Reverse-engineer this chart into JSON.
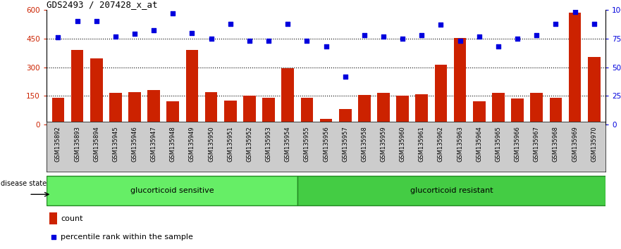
{
  "title": "GDS2493 / 207428_x_at",
  "samples": [
    "GSM135892",
    "GSM135893",
    "GSM135894",
    "GSM135945",
    "GSM135946",
    "GSM135947",
    "GSM135948",
    "GSM135949",
    "GSM135950",
    "GSM135951",
    "GSM135952",
    "GSM135953",
    "GSM135954",
    "GSM135955",
    "GSM135956",
    "GSM135957",
    "GSM135958",
    "GSM135959",
    "GSM135960",
    "GSM135961",
    "GSM135962",
    "GSM135963",
    "GSM135964",
    "GSM135965",
    "GSM135966",
    "GSM135967",
    "GSM135968",
    "GSM135969",
    "GSM135970"
  ],
  "counts": [
    140,
    390,
    345,
    165,
    170,
    180,
    120,
    390,
    170,
    125,
    150,
    140,
    295,
    140,
    30,
    80,
    155,
    165,
    150,
    160,
    315,
    455,
    120,
    165,
    135,
    165,
    140,
    585,
    355
  ],
  "percentile": [
    76,
    90,
    90,
    77,
    79,
    82,
    97,
    80,
    75,
    88,
    73,
    73,
    88,
    73,
    68,
    42,
    78,
    77,
    75,
    78,
    87,
    73,
    77,
    68,
    75,
    78,
    88,
    98,
    88
  ],
  "group1_count": 13,
  "group1_label": "glucorticoid sensitive",
  "group2_label": "glucorticoid resistant",
  "bar_color": "#cc2200",
  "dot_color": "#0000dd",
  "ylim_left": [
    0,
    600
  ],
  "ylim_right": [
    0,
    100
  ],
  "yticks_left": [
    0,
    150,
    300,
    450,
    600
  ],
  "ytick_labels_left": [
    "0",
    "150",
    "300",
    "450",
    "600"
  ],
  "yticks_right": [
    0,
    25,
    50,
    75,
    100
  ],
  "ytick_labels_right": [
    "0",
    "25",
    "50",
    "75",
    "100%"
  ],
  "hlines": [
    150,
    300,
    450
  ],
  "group1_color": "#66ee66",
  "group2_color": "#44cc44",
  "disease_state_label": "disease state",
  "legend_count_label": "count",
  "legend_percentile_label": "percentile rank within the sample",
  "tick_bg_color": "#cccccc",
  "plot_bg": "#ffffff"
}
